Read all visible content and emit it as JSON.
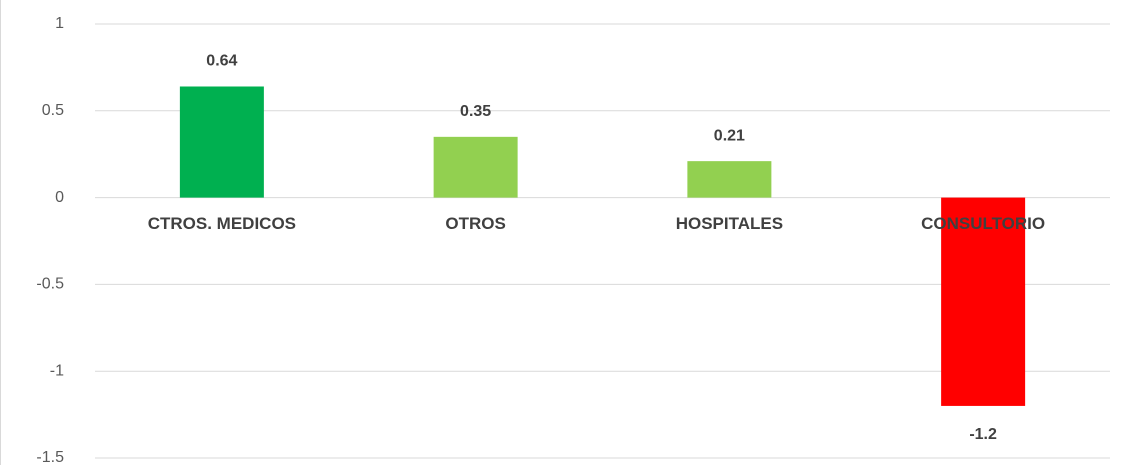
{
  "chart_data": {
    "type": "bar",
    "categories": [
      "CTROS. MEDICOS",
      "OTROS",
      "HOSPITALES",
      "CONSULTORIO"
    ],
    "values": [
      0.64,
      0.35,
      0.21,
      -1.2
    ],
    "colors": [
      "#00b050",
      "#92d050",
      "#92d050",
      "#ff0000"
    ],
    "ylim": [
      -1.5,
      1
    ],
    "yticks": [
      -1.5,
      -1,
      -0.5,
      0,
      0.5,
      1
    ],
    "grid": true
  }
}
